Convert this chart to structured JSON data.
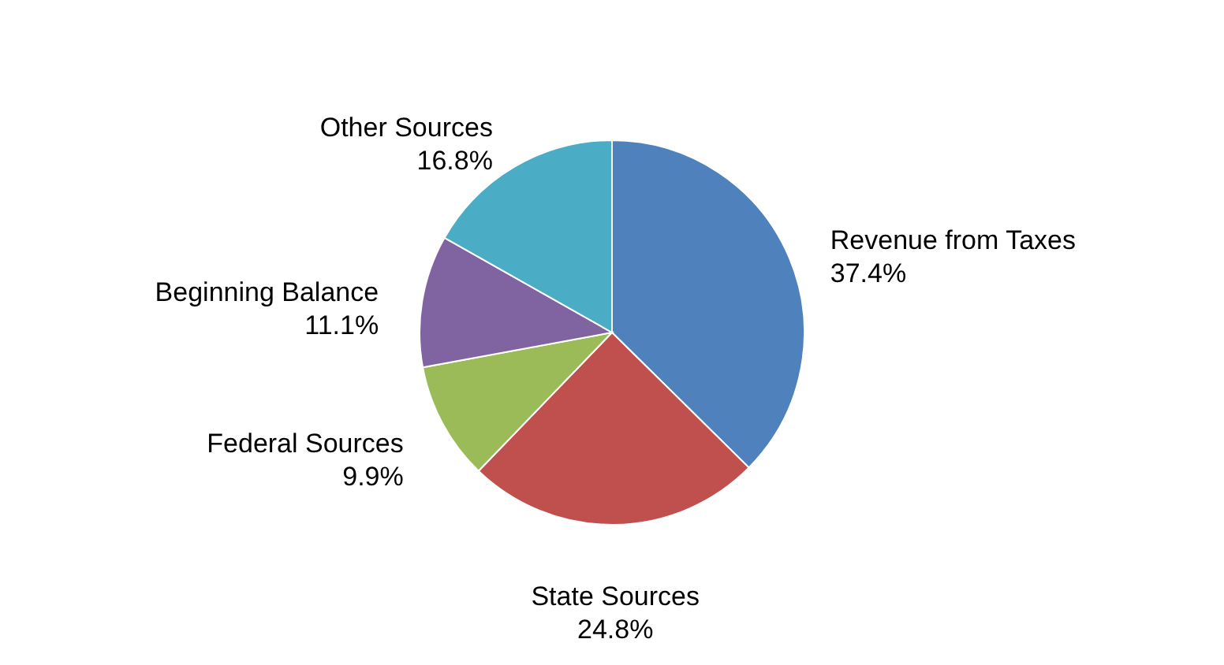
{
  "chart_data": {
    "type": "pie",
    "categories": [
      "Revenue from Taxes",
      "State Sources",
      "Federal Sources",
      "Beginning Balance",
      "Other Sources"
    ],
    "values": [
      37.4,
      24.8,
      9.9,
      11.1,
      16.8
    ],
    "colors": [
      "#4f81bd",
      "#c0504d",
      "#9bbb59",
      "#8064a2",
      "#4bacc6"
    ],
    "value_labels": [
      "37.4%",
      "24.8%",
      "9.9%",
      "11.1%",
      "16.8%"
    ]
  }
}
